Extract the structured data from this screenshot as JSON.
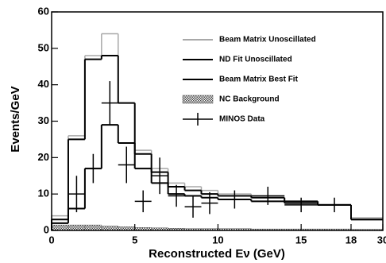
{
  "chart_data": {
    "type": "histogram",
    "x_label": "Reconstructed Eν (GeV)",
    "y_label": "Events/GeV",
    "bins": [
      0,
      1,
      2,
      3,
      4,
      5,
      6,
      7,
      8,
      9,
      10,
      12,
      14,
      16,
      18,
      30
    ],
    "xlim": [
      0,
      30
    ],
    "xticks": [
      0,
      5,
      10,
      15,
      18,
      30
    ],
    "ylim": [
      0,
      60
    ],
    "yticks": [
      0,
      10,
      20,
      30,
      40,
      50,
      60
    ],
    "legend": "upper right",
    "series": [
      {
        "name": "Beam Matrix Unoscillated",
        "color": "#a8a8a8",
        "style": "step",
        "values": [
          4,
          26,
          48,
          54,
          35,
          22,
          17,
          13,
          12,
          11,
          10,
          9,
          8,
          7,
          3.5
        ]
      },
      {
        "name": "ND Fit Unoscillated",
        "color": "#000000",
        "style": "step",
        "values": [
          3,
          25,
          47,
          48,
          35,
          21,
          16,
          12,
          11,
          10,
          9.5,
          9,
          8,
          7,
          3
        ]
      },
      {
        "name": "Beam Matrix Best Fit",
        "color": "#000000",
        "style": "step",
        "values": [
          2,
          6,
          17,
          29,
          24,
          17,
          13,
          10,
          9.5,
          9,
          8.5,
          8,
          7.5,
          7,
          3
        ]
      },
      {
        "name": "NC Background",
        "color": "#555555",
        "style": "hatched",
        "values": [
          1.5,
          1.5,
          1.5,
          1.2,
          1,
          0.8,
          0.7,
          0.6,
          0.5,
          0.5,
          0.5,
          0.4,
          0.4,
          0.4,
          0.3
        ]
      }
    ],
    "points": {
      "name": "MINOS Data",
      "color": "#000000",
      "x": [
        1.5,
        2.5,
        3.5,
        4.5,
        5.5,
        6.5,
        7.5,
        8.5,
        9.5,
        11,
        13,
        15,
        17
      ],
      "xerrors": [
        0.5,
        0.5,
        0.5,
        0.5,
        0.5,
        0.5,
        0.5,
        0.5,
        0.5,
        1,
        1,
        1,
        1
      ],
      "values": [
        10,
        17,
        35,
        18,
        8,
        15,
        9.5,
        6.5,
        7.5,
        8.5,
        9.5,
        7,
        7
      ],
      "errors": [
        5,
        4,
        6,
        5,
        3,
        5,
        3,
        3,
        3,
        2.5,
        2.5,
        2,
        2
      ]
    }
  }
}
